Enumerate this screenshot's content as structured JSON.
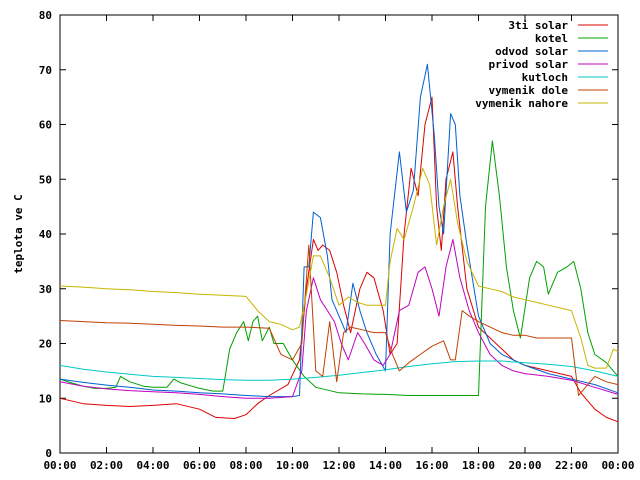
{
  "chart_data": {
    "type": "line",
    "title": "",
    "xlabel": "",
    "ylabel": "teplota ve C",
    "xlim": [
      "00:00",
      "24:00"
    ],
    "ylim": [
      0,
      80
    ],
    "x_ticks": [
      "00:00",
      "02:00",
      "04:00",
      "06:00",
      "08:00",
      "10:00",
      "12:00",
      "14:00",
      "16:00",
      "18:00",
      "20:00",
      "22:00",
      "00:00"
    ],
    "y_ticks": [
      "0",
      "10",
      "20",
      "30",
      "40",
      "50",
      "60",
      "70",
      "80"
    ],
    "grid": false,
    "legend_position": "top-right",
    "x_unit": "hours",
    "series": [
      {
        "name": "3ti solar",
        "color": "#dd0000",
        "points": [
          [
            0,
            10
          ],
          [
            1,
            9
          ],
          [
            2,
            8.7
          ],
          [
            3,
            8.5
          ],
          [
            4,
            8.7
          ],
          [
            5,
            9
          ],
          [
            6,
            8
          ],
          [
            6.7,
            6.5
          ],
          [
            7.5,
            6.3
          ],
          [
            8,
            7
          ],
          [
            8.5,
            9
          ],
          [
            9,
            10.5
          ],
          [
            9.8,
            12.5
          ],
          [
            10.3,
            17
          ],
          [
            10.6,
            30
          ],
          [
            10.9,
            39
          ],
          [
            11.1,
            37
          ],
          [
            11.3,
            38
          ],
          [
            11.6,
            37
          ],
          [
            11.9,
            33
          ],
          [
            12.2,
            27
          ],
          [
            12.5,
            22
          ],
          [
            12.9,
            30
          ],
          [
            13.2,
            33
          ],
          [
            13.5,
            32
          ],
          [
            13.9,
            26
          ],
          [
            14.2,
            18
          ],
          [
            14.5,
            20
          ],
          [
            14.8,
            40
          ],
          [
            15.1,
            52
          ],
          [
            15.4,
            47
          ],
          [
            15.7,
            60
          ],
          [
            16.0,
            65
          ],
          [
            16.2,
            45
          ],
          [
            16.4,
            37
          ],
          [
            16.6,
            50
          ],
          [
            16.9,
            55
          ],
          [
            17.1,
            45
          ],
          [
            17.5,
            30
          ],
          [
            18,
            23
          ],
          [
            18.5,
            21
          ],
          [
            19,
            19
          ],
          [
            19.5,
            17
          ],
          [
            20,
            16
          ],
          [
            21,
            15
          ],
          [
            22,
            14
          ],
          [
            22.4,
            11
          ],
          [
            23,
            8
          ],
          [
            23.5,
            6.5
          ],
          [
            24,
            5.7
          ]
        ]
      },
      {
        "name": "kotel",
        "color": "#00a000",
        "points": [
          [
            0,
            13.5
          ],
          [
            0.5,
            12.8
          ],
          [
            1,
            12.2
          ],
          [
            1.5,
            11.8
          ],
          [
            2,
            11.8
          ],
          [
            2.4,
            12
          ],
          [
            2.6,
            14
          ],
          [
            3,
            13
          ],
          [
            3.6,
            12.2
          ],
          [
            4,
            12
          ],
          [
            4.6,
            12
          ],
          [
            4.9,
            13.5
          ],
          [
            5.2,
            12.8
          ],
          [
            5.6,
            12.3
          ],
          [
            6,
            11.8
          ],
          [
            6.6,
            11.3
          ],
          [
            7,
            11.3
          ],
          [
            7.3,
            19
          ],
          [
            7.6,
            22
          ],
          [
            7.9,
            24
          ],
          [
            8.1,
            20.5
          ],
          [
            8.3,
            24
          ],
          [
            8.5,
            25
          ],
          [
            8.7,
            20.5
          ],
          [
            9,
            23
          ],
          [
            9.2,
            20
          ],
          [
            9.6,
            20
          ],
          [
            10,
            17
          ],
          [
            10.5,
            14
          ],
          [
            11,
            12
          ],
          [
            12,
            11
          ],
          [
            13,
            10.8
          ],
          [
            14,
            10.7
          ],
          [
            15,
            10.5
          ],
          [
            16,
            10.5
          ],
          [
            17,
            10.5
          ],
          [
            18,
            10.5
          ],
          [
            18.3,
            45
          ],
          [
            18.6,
            57
          ],
          [
            18.9,
            47
          ],
          [
            19.2,
            34
          ],
          [
            19.5,
            26
          ],
          [
            19.8,
            21
          ],
          [
            20.2,
            32
          ],
          [
            20.5,
            35
          ],
          [
            20.8,
            34
          ],
          [
            21.0,
            29
          ],
          [
            21.4,
            33
          ],
          [
            21.8,
            34
          ],
          [
            22.1,
            35
          ],
          [
            22.4,
            30
          ],
          [
            22.7,
            22
          ],
          [
            23,
            18
          ],
          [
            23.5,
            16.5
          ],
          [
            24,
            14
          ]
        ]
      },
      {
        "name": "odvod solar",
        "color": "#0060d0",
        "points": [
          [
            0,
            13.5
          ],
          [
            1,
            12.9
          ],
          [
            2,
            12.4
          ],
          [
            3,
            12
          ],
          [
            4,
            11.5
          ],
          [
            5,
            11.3
          ],
          [
            6,
            11
          ],
          [
            7,
            10.8
          ],
          [
            8,
            10.5
          ],
          [
            9,
            10.3
          ],
          [
            10,
            10.3
          ],
          [
            10.3,
            10.5
          ],
          [
            10.5,
            34
          ],
          [
            10.7,
            34
          ],
          [
            10.9,
            44
          ],
          [
            11.2,
            43
          ],
          [
            11.5,
            36
          ],
          [
            11.7,
            28
          ],
          [
            12,
            25
          ],
          [
            12.3,
            22
          ],
          [
            12.6,
            31
          ],
          [
            12.9,
            26
          ],
          [
            13.2,
            22
          ],
          [
            13.6,
            18
          ],
          [
            14,
            15
          ],
          [
            14.2,
            40
          ],
          [
            14.6,
            55
          ],
          [
            14.9,
            44
          ],
          [
            15.2,
            48
          ],
          [
            15.5,
            65
          ],
          [
            15.8,
            71
          ],
          [
            16.1,
            58
          ],
          [
            16.3,
            45
          ],
          [
            16.5,
            40
          ],
          [
            16.8,
            62
          ],
          [
            17.0,
            60
          ],
          [
            17.2,
            47
          ],
          [
            17.5,
            38
          ],
          [
            18,
            25
          ],
          [
            18.5,
            20
          ],
          [
            19,
            18
          ],
          [
            19.5,
            17
          ],
          [
            20,
            16
          ],
          [
            21,
            14.5
          ],
          [
            22,
            13.5
          ],
          [
            23,
            12.5
          ],
          [
            24,
            11
          ]
        ]
      },
      {
        "name": "privod solar",
        "color": "#c000c0",
        "points": [
          [
            0,
            13
          ],
          [
            1,
            12.2
          ],
          [
            2,
            11.7
          ],
          [
            3,
            11.4
          ],
          [
            4,
            11.2
          ],
          [
            5,
            11
          ],
          [
            6,
            10.7
          ],
          [
            7,
            10.3
          ],
          [
            8,
            10
          ],
          [
            9,
            10
          ],
          [
            10,
            10.3
          ],
          [
            10.4,
            15
          ],
          [
            10.6,
            26
          ],
          [
            10.9,
            32
          ],
          [
            11.2,
            28
          ],
          [
            11.5,
            26
          ],
          [
            11.8,
            24
          ],
          [
            12.1,
            20
          ],
          [
            12.4,
            17
          ],
          [
            12.8,
            22
          ],
          [
            13.1,
            20
          ],
          [
            13.5,
            17
          ],
          [
            13.9,
            16
          ],
          [
            14.2,
            18
          ],
          [
            14.6,
            26
          ],
          [
            15,
            27
          ],
          [
            15.4,
            33
          ],
          [
            15.7,
            34
          ],
          [
            16,
            30
          ],
          [
            16.3,
            25
          ],
          [
            16.6,
            34
          ],
          [
            16.9,
            39
          ],
          [
            17.2,
            32
          ],
          [
            17.6,
            26
          ],
          [
            18,
            22
          ],
          [
            18.5,
            18
          ],
          [
            19,
            16
          ],
          [
            19.5,
            15
          ],
          [
            20,
            14.5
          ],
          [
            21,
            14
          ],
          [
            22,
            13.3
          ],
          [
            23,
            12
          ],
          [
            24,
            10.7
          ]
        ]
      },
      {
        "name": "kutloch",
        "color": "#00c8c8",
        "points": [
          [
            0,
            16
          ],
          [
            1,
            15.3
          ],
          [
            2,
            14.8
          ],
          [
            3,
            14.4
          ],
          [
            4,
            14
          ],
          [
            5,
            13.8
          ],
          [
            6,
            13.6
          ],
          [
            7,
            13.4
          ],
          [
            8,
            13.3
          ],
          [
            9,
            13.3
          ],
          [
            10,
            13.5
          ],
          [
            11,
            13.8
          ],
          [
            12,
            14.2
          ],
          [
            13,
            14.7
          ],
          [
            14,
            15.2
          ],
          [
            15,
            15.8
          ],
          [
            16,
            16.3
          ],
          [
            17,
            16.7
          ],
          [
            18,
            16.8
          ],
          [
            19,
            16.8
          ],
          [
            20,
            16.5
          ],
          [
            21,
            16.2
          ],
          [
            22,
            15.8
          ],
          [
            23,
            15
          ],
          [
            24,
            14
          ]
        ]
      },
      {
        "name": "vymenik dole",
        "color": "#c04000",
        "points": [
          [
            0,
            24.2
          ],
          [
            1,
            24
          ],
          [
            2,
            23.8
          ],
          [
            3,
            23.7
          ],
          [
            4,
            23.5
          ],
          [
            5,
            23.3
          ],
          [
            6,
            23.2
          ],
          [
            7,
            23
          ],
          [
            8,
            23
          ],
          [
            9,
            22.8
          ],
          [
            9.5,
            18
          ],
          [
            10,
            17
          ],
          [
            10.4,
            20
          ],
          [
            10.7,
            38
          ],
          [
            11,
            15
          ],
          [
            11.3,
            14
          ],
          [
            11.6,
            24
          ],
          [
            11.9,
            13
          ],
          [
            12.2,
            22
          ],
          [
            12.5,
            23
          ],
          [
            13,
            22.5
          ],
          [
            13.5,
            22
          ],
          [
            14,
            22
          ],
          [
            14.3,
            18
          ],
          [
            14.6,
            15
          ],
          [
            15,
            16.5
          ],
          [
            15.5,
            18
          ],
          [
            16,
            19.5
          ],
          [
            16.5,
            20.5
          ],
          [
            16.8,
            17
          ],
          [
            17,
            17
          ],
          [
            17.3,
            26
          ],
          [
            17.6,
            25
          ],
          [
            18,
            24
          ],
          [
            18.5,
            23
          ],
          [
            19,
            22
          ],
          [
            19.5,
            21.5
          ],
          [
            20,
            21.5
          ],
          [
            20.5,
            21
          ],
          [
            21,
            21
          ],
          [
            21.5,
            21
          ],
          [
            22,
            21
          ],
          [
            22.3,
            10.5
          ],
          [
            22.6,
            12
          ],
          [
            23,
            14
          ],
          [
            23.5,
            13
          ],
          [
            24,
            12.5
          ]
        ]
      },
      {
        "name": "vymenik nahore",
        "color": "#c8b400",
        "points": [
          [
            0,
            30.5
          ],
          [
            1,
            30.3
          ],
          [
            2,
            30
          ],
          [
            3,
            29.8
          ],
          [
            4,
            29.5
          ],
          [
            5,
            29.3
          ],
          [
            6,
            29
          ],
          [
            7,
            28.8
          ],
          [
            8,
            28.6
          ],
          [
            8.5,
            26
          ],
          [
            9,
            24
          ],
          [
            9.5,
            23.5
          ],
          [
            10,
            22.5
          ],
          [
            10.3,
            23
          ],
          [
            10.6,
            29
          ],
          [
            10.9,
            36
          ],
          [
            11.2,
            36
          ],
          [
            11.6,
            32
          ],
          [
            12,
            27
          ],
          [
            12.4,
            28.5
          ],
          [
            12.8,
            27.5
          ],
          [
            13.2,
            27
          ],
          [
            13.6,
            27
          ],
          [
            14,
            27
          ],
          [
            14.2,
            35
          ],
          [
            14.5,
            41
          ],
          [
            14.8,
            39
          ],
          [
            15.2,
            45
          ],
          [
            15.6,
            52
          ],
          [
            15.9,
            49
          ],
          [
            16.2,
            38
          ],
          [
            16.5,
            45
          ],
          [
            16.8,
            50
          ],
          [
            17.1,
            42
          ],
          [
            17.5,
            35
          ],
          [
            18,
            30.5
          ],
          [
            18.5,
            30
          ],
          [
            19,
            29.5
          ],
          [
            19.5,
            28.5
          ],
          [
            20,
            28
          ],
          [
            20.5,
            27.5
          ],
          [
            21,
            27
          ],
          [
            21.5,
            26.5
          ],
          [
            22,
            26
          ],
          [
            22.4,
            21
          ],
          [
            22.7,
            16
          ],
          [
            23,
            15.5
          ],
          [
            23.5,
            15.5
          ],
          [
            23.8,
            19
          ],
          [
            24,
            18.5
          ]
        ]
      }
    ]
  }
}
